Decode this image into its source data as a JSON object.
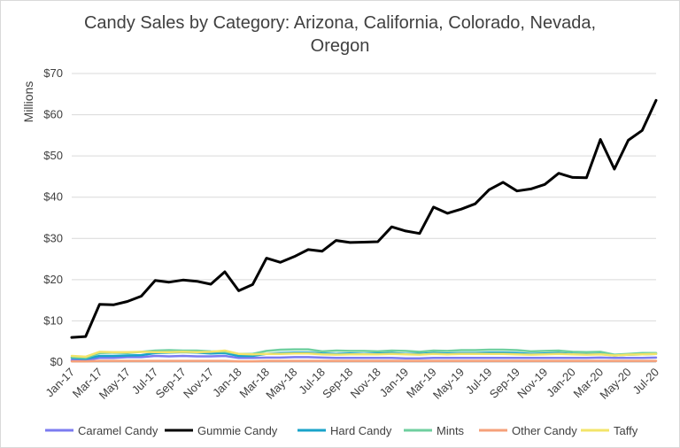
{
  "chart_data": {
    "type": "line",
    "title_lines": [
      "Candy Sales by Category: Arizona, California, Colorado, Nevada,",
      "Oregon"
    ],
    "ylabel": "Millions",
    "xlabel": "",
    "ylim": [
      0,
      70
    ],
    "yticks": [
      0,
      10,
      20,
      30,
      40,
      50,
      60,
      70
    ],
    "ytick_labels": [
      "$0",
      "$10",
      "$20",
      "$30",
      "$40",
      "$50",
      "$60",
      "$70"
    ],
    "x": [
      "Jan-17",
      "Feb-17",
      "Mar-17",
      "Apr-17",
      "May-17",
      "Jun-17",
      "Jul-17",
      "Aug-17",
      "Sep-17",
      "Oct-17",
      "Nov-17",
      "Dec-17",
      "Jan-18",
      "Feb-18",
      "Mar-18",
      "Apr-18",
      "May-18",
      "Jun-18",
      "Jul-18",
      "Aug-18",
      "Sep-18",
      "Oct-18",
      "Nov-18",
      "Dec-18",
      "Jan-19",
      "Feb-19",
      "Mar-19",
      "Apr-19",
      "May-19",
      "Jun-19",
      "Jul-19",
      "Aug-19",
      "Sep-19",
      "Oct-19",
      "Nov-19",
      "Dec-19",
      "Jan-20",
      "Feb-20",
      "Mar-20",
      "Apr-20",
      "May-20",
      "Jun-20",
      "Jul-20"
    ],
    "xtick_labels": [
      "Jan-17",
      "Mar-17",
      "May-17",
      "Jul-17",
      "Sep-17",
      "Nov-17",
      "Jan-18",
      "Mar-18",
      "May-18",
      "Jul-18",
      "Sep-18",
      "Nov-18",
      "Jan-19",
      "Mar-19",
      "May-19",
      "Jul-19",
      "Sep-19",
      "Nov-19",
      "Jan-20",
      "Mar-20",
      "May-20",
      "Jul-20"
    ],
    "grid": true,
    "legend_position": "bottom",
    "series": [
      {
        "name": "Caramel Candy",
        "color": "#7b7bf0",
        "values": [
          0.5,
          0.5,
          1.0,
          1.0,
          1.2,
          1.2,
          1.5,
          1.4,
          1.5,
          1.4,
          1.4,
          1.5,
          1.0,
          1.0,
          1.1,
          1.1,
          1.2,
          1.2,
          1.1,
          1.0,
          1.0,
          1.0,
          1.0,
          1.0,
          0.9,
          0.9,
          1.0,
          1.0,
          1.0,
          1.0,
          1.0,
          1.0,
          1.0,
          1.0,
          1.0,
          1.0,
          1.0,
          1.0,
          1.1,
          1.0,
          1.0,
          1.0,
          1.1
        ]
      },
      {
        "name": "Gummie Candy",
        "color": "#000000",
        "values": [
          6.0,
          6.2,
          14.0,
          13.9,
          14.7,
          16.0,
          19.8,
          19.4,
          19.9,
          19.6,
          18.9,
          21.9,
          17.3,
          18.8,
          25.2,
          24.2,
          25.6,
          27.3,
          26.9,
          29.5,
          29.0,
          29.1,
          29.2,
          32.8,
          31.8,
          31.2,
          37.6,
          36.1,
          37.1,
          38.4,
          41.8,
          43.6,
          41.5,
          42.0,
          43.1,
          45.8,
          44.8,
          44.7,
          54.0,
          46.8,
          53.8,
          56.2,
          63.5
        ]
      },
      {
        "name": "Hard Candy",
        "color": "#1aa3c9",
        "values": [
          1.0,
          0.8,
          1.5,
          1.5,
          1.6,
          1.7,
          2.2,
          2.3,
          2.4,
          2.3,
          2.1,
          2.2,
          1.5,
          1.5,
          2.0,
          2.2,
          2.3,
          2.3,
          2.1,
          2.0,
          2.1,
          2.0,
          2.1,
          2.2,
          2.0,
          2.0,
          2.2,
          2.1,
          2.2,
          2.2,
          2.3,
          2.3,
          2.2,
          2.0,
          2.1,
          2.2,
          2.0,
          1.9,
          2.0,
          1.6,
          1.8,
          1.9,
          2.0
        ]
      },
      {
        "name": "Mints",
        "color": "#6fcf9f",
        "values": [
          1.2,
          1.0,
          2.2,
          2.3,
          2.2,
          2.5,
          2.8,
          2.9,
          2.8,
          2.8,
          2.6,
          2.5,
          2.0,
          2.0,
          2.7,
          3.0,
          3.1,
          3.1,
          2.6,
          2.8,
          2.7,
          2.7,
          2.6,
          2.8,
          2.7,
          2.5,
          2.8,
          2.7,
          2.9,
          2.9,
          3.0,
          3.0,
          2.9,
          2.6,
          2.7,
          2.8,
          2.5,
          2.4,
          2.5,
          1.8,
          2.0,
          2.2,
          2.2
        ]
      },
      {
        "name": "Other Candy",
        "color": "#f5a07a",
        "values": [
          0.2,
          0.2,
          0.3,
          0.3,
          0.3,
          0.3,
          0.3,
          0.3,
          0.3,
          0.3,
          0.3,
          0.3,
          0.2,
          0.2,
          0.3,
          0.3,
          0.3,
          0.3,
          0.3,
          0.3,
          0.3,
          0.3,
          0.3,
          0.3,
          0.3,
          0.3,
          0.3,
          0.3,
          0.3,
          0.3,
          0.3,
          0.3,
          0.3,
          0.3,
          0.3,
          0.3,
          0.3,
          0.3,
          0.3,
          0.3,
          0.3,
          0.3,
          0.3
        ]
      },
      {
        "name": "Taffy",
        "color": "#f3e46a",
        "values": [
          1.5,
          1.3,
          2.5,
          2.4,
          2.4,
          2.5,
          2.4,
          2.4,
          2.5,
          2.4,
          2.5,
          2.8,
          2.0,
          1.9,
          2.0,
          2.0,
          2.1,
          2.1,
          1.9,
          1.8,
          1.9,
          1.9,
          1.9,
          2.0,
          1.9,
          1.8,
          2.0,
          1.9,
          2.0,
          2.0,
          2.0,
          2.0,
          1.9,
          1.8,
          1.9,
          2.0,
          1.9,
          1.8,
          1.9,
          1.6,
          1.8,
          1.9,
          2.0
        ]
      }
    ]
  }
}
